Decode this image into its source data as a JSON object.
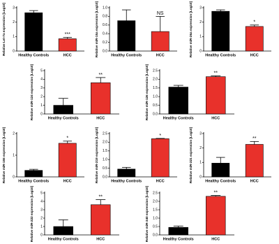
{
  "chart_data": [
    {
      "type": "bar",
      "ylabel": "Relative Let-7a expression [Log10]",
      "categories": [
        "Healthy Controls",
        "HCC"
      ],
      "values": [
        2.65,
        0.85
      ],
      "errors": [
        0.15,
        0.1
      ],
      "colors": [
        "#000000",
        "#e8312b"
      ],
      "annotation": "***",
      "ylim": [
        0,
        3
      ],
      "yticks": [
        0,
        1,
        2,
        3
      ]
    },
    {
      "type": "bar",
      "ylabel": "Relative miR-15a expression [Log10]",
      "categories": [
        "Healthy Controls",
        "HCC"
      ],
      "values": [
        0.7,
        0.45
      ],
      "errors": [
        0.25,
        0.35
      ],
      "colors": [
        "#000000",
        "#e8312b"
      ],
      "annotation": "NS",
      "ylim": [
        0,
        1
      ],
      "yticks": [
        {
          "value": 0,
          "label": "0.0"
        },
        0.2,
        0.4,
        0.6,
        0.8,
        {
          "value": 1,
          "label": "1.0"
        }
      ]
    },
    {
      "type": "bar",
      "ylabel": "Relative miR-26a expression [Log10]",
      "categories": [
        "Healthy Controls",
        "HCC"
      ],
      "values": [
        2.75,
        1.7
      ],
      "errors": [
        0.1,
        0.1
      ],
      "colors": [
        "#000000",
        "#e8312b"
      ],
      "annotation": "*",
      "ylim": [
        0,
        3
      ],
      "yticks": [
        0,
        1,
        2,
        3
      ]
    },
    {
      "type": "bar",
      "ylabel": "Relative miR-124 expression [Log10]",
      "categories": [
        "Healthy Controls",
        "HCC"
      ],
      "values": [
        1.0,
        3.6
      ],
      "errors": [
        0.8,
        0.6
      ],
      "colors": [
        "#000000",
        "#e8312b"
      ],
      "annotation": "**",
      "ylim": [
        0,
        5
      ],
      "yticks": [
        0,
        1,
        2,
        3,
        4,
        5
      ]
    },
    {
      "type": "bar",
      "ylabel": "Relative miR-126 expression [Log10]",
      "categories": [
        "Healthy Controls",
        "HCC"
      ],
      "values": [
        1.55,
        2.15
      ],
      "errors": [
        0.1,
        0.05
      ],
      "colors": [
        "#000000",
        "#e8312b"
      ],
      "annotation": "**",
      "ylim": [
        0,
        2.5
      ],
      "yticks": [
        {
          "value": 0,
          "label": "0.0"
        },
        0.5,
        {
          "value": 1,
          "label": "1.0"
        },
        1.5,
        {
          "value": 2,
          "label": "2.0"
        },
        2.5
      ]
    },
    {
      "type": "bar",
      "ylabel": "Relative miR-155 expression [Log10]",
      "categories": [
        "Healthy Controls",
        "HCC"
      ],
      "values": [
        0.3,
        1.55
      ],
      "errors": [
        0.05,
        0.1
      ],
      "colors": [
        "#000000",
        "#e8312b"
      ],
      "annotation": "*",
      "ylim": [
        0,
        2
      ],
      "yticks": [
        0,
        1,
        2
      ]
    },
    {
      "type": "bar",
      "ylabel": "Relative miR-219 expression [Log10]",
      "categories": [
        "Healthy Controls",
        "HCC"
      ],
      "values": [
        0.45,
        2.2
      ],
      "errors": [
        0.1,
        0.02
      ],
      "colors": [
        "#000000",
        "#e8312b"
      ],
      "annotation": "*",
      "ylim": [
        0,
        2.5
      ],
      "yticks": [
        {
          "value": 0,
          "label": "0.0"
        },
        0.5,
        {
          "value": 1,
          "label": "1.0"
        },
        1.5,
        {
          "value": 2,
          "label": "2.0"
        },
        2.5
      ]
    },
    {
      "type": "bar",
      "ylabel": "Relative miR-221 expression [Log10]",
      "categories": [
        "Healthy Controls",
        "HCC"
      ],
      "values": [
        0.95,
        2.25
      ],
      "errors": [
        0.4,
        0.2
      ],
      "colors": [
        "#000000",
        "#e8312b"
      ],
      "annotation": "**",
      "ylim": [
        0,
        3
      ],
      "yticks": [
        0,
        1,
        2,
        3
      ]
    },
    {
      "type": "bar",
      "ylabel": "Relative miR-222 expression [Log10]",
      "categories": [
        "Healthy Controls",
        "HCC"
      ],
      "values": [
        1.0,
        3.6
      ],
      "errors": [
        0.8,
        0.6
      ],
      "colors": [
        "#000000",
        "#e8312b"
      ],
      "annotation": "**",
      "ylim": [
        0,
        5
      ],
      "yticks": [
        0,
        1,
        2,
        3,
        4,
        5
      ]
    },
    {
      "type": "bar",
      "ylabel": "Relative miR-340 expression [Log10]",
      "categories": [
        "Healthy Controls",
        "HCC"
      ],
      "values": [
        0.45,
        2.3
      ],
      "errors": [
        0.08,
        0.05
      ],
      "colors": [
        "#000000",
        "#e8312b"
      ],
      "annotation": "**",
      "ylim": [
        0,
        2.5
      ],
      "yticks": [
        {
          "value": 0,
          "label": "0.0"
        },
        0.5,
        {
          "value": 1,
          "label": "1.0"
        },
        1.5,
        {
          "value": 2,
          "label": "2.0"
        },
        2.5
      ]
    }
  ]
}
